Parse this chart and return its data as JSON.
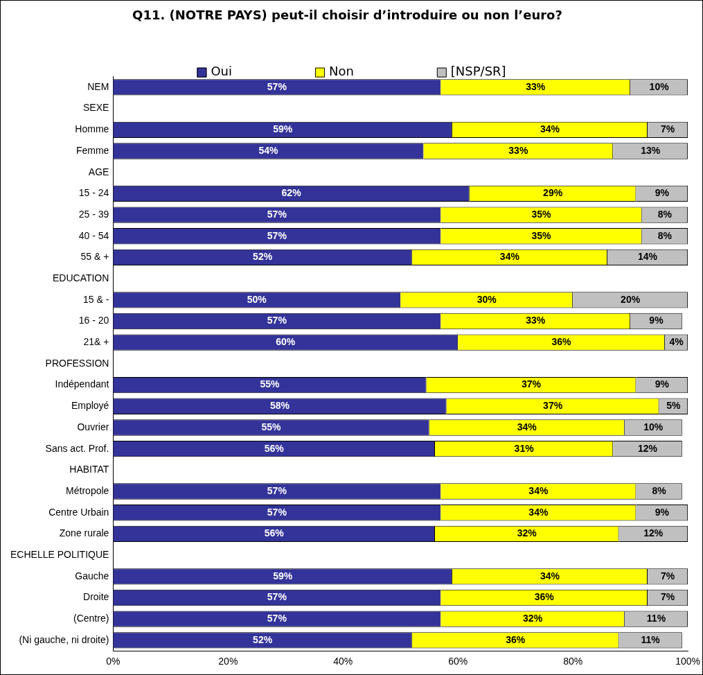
{
  "chart_data": {
    "type": "bar",
    "orientation": "horizontal",
    "stacked": true,
    "title": "Q11. (NOTRE PAYS) peut-il choisir d’introduire ou non l’euro?",
    "categories": [
      "NEM",
      "SEXE",
      "Homme",
      "Femme",
      "AGE",
      "15 - 24",
      "25 - 39",
      "40 - 54",
      "55 & +",
      "EDUCATION",
      "15 & -",
      "16 - 20",
      "21& +",
      "PROFESSION",
      "Indépendant",
      "Employé",
      "Ouvrier",
      "Sans act. Prof.",
      "HABITAT",
      "Métropole",
      "Centre Urbain",
      "Zone rurale",
      "ECHELLE POLITIQUE",
      "Gauche",
      "Droite",
      "(Centre)",
      "(Ni gauche, ni droite)"
    ],
    "series": [
      {
        "name": "Oui",
        "color": "#333399",
        "values": [
          57,
          null,
          59,
          54,
          null,
          62,
          57,
          57,
          52,
          null,
          50,
          57,
          60,
          null,
          54.5,
          58,
          55,
          56,
          null,
          57,
          57,
          56,
          null,
          59,
          57,
          57,
          52
        ],
        "value_labels": [
          "57%",
          null,
          "59%",
          "54%",
          null,
          "62%",
          "57%",
          "57%",
          "52%",
          null,
          "50%",
          "57%",
          "60%",
          null,
          "55%",
          "58%",
          "55%",
          "56%",
          null,
          "57%",
          "57%",
          "56%",
          null,
          "59%",
          "57%",
          "57%",
          "52%"
        ]
      },
      {
        "name": "Non",
        "color": "#ffff00",
        "values": [
          33,
          null,
          34,
          33,
          null,
          29,
          35,
          35,
          34,
          null,
          30,
          33,
          36,
          null,
          36.5,
          37,
          34,
          31,
          null,
          34,
          34,
          32,
          null,
          34,
          36,
          32,
          36
        ],
        "value_labels": [
          "33%",
          null,
          "34%",
          "33%",
          null,
          "29%",
          "35%",
          "35%",
          "34%",
          null,
          "30%",
          "33%",
          "36%",
          null,
          "37%",
          "37%",
          "34%",
          "31%",
          null,
          "34%",
          "34%",
          "32%",
          null,
          "34%",
          "36%",
          "32%",
          "36%"
        ]
      },
      {
        "name": "[NSP/SR]",
        "color": "#c0c0c0",
        "values": [
          10,
          null,
          7,
          13,
          null,
          9,
          8,
          8,
          14,
          null,
          20,
          9,
          4,
          null,
          9,
          5,
          10,
          12,
          null,
          8,
          9,
          12,
          null,
          7,
          7,
          11,
          11
        ],
        "value_labels": [
          "10%",
          null,
          "7%",
          "13%",
          null,
          "9%",
          "8%",
          "8%",
          "14%",
          null,
          "20%",
          "9%",
          "4%",
          null,
          "9%",
          "5%",
          "10%",
          "12%",
          null,
          "8%",
          "9%",
          "12%",
          null,
          "7%",
          "7%",
          "11%",
          "11%"
        ]
      }
    ],
    "xlim": [
      0,
      100
    ],
    "xticks": [
      {
        "value": 0,
        "label": "0%"
      },
      {
        "value": 20,
        "label": "20%"
      },
      {
        "value": 40,
        "label": "40%"
      },
      {
        "value": 60,
        "label": "60%"
      },
      {
        "value": 80,
        "label": "80%"
      },
      {
        "value": 100,
        "label": "100%"
      }
    ],
    "grid": false,
    "legend": "top"
  }
}
